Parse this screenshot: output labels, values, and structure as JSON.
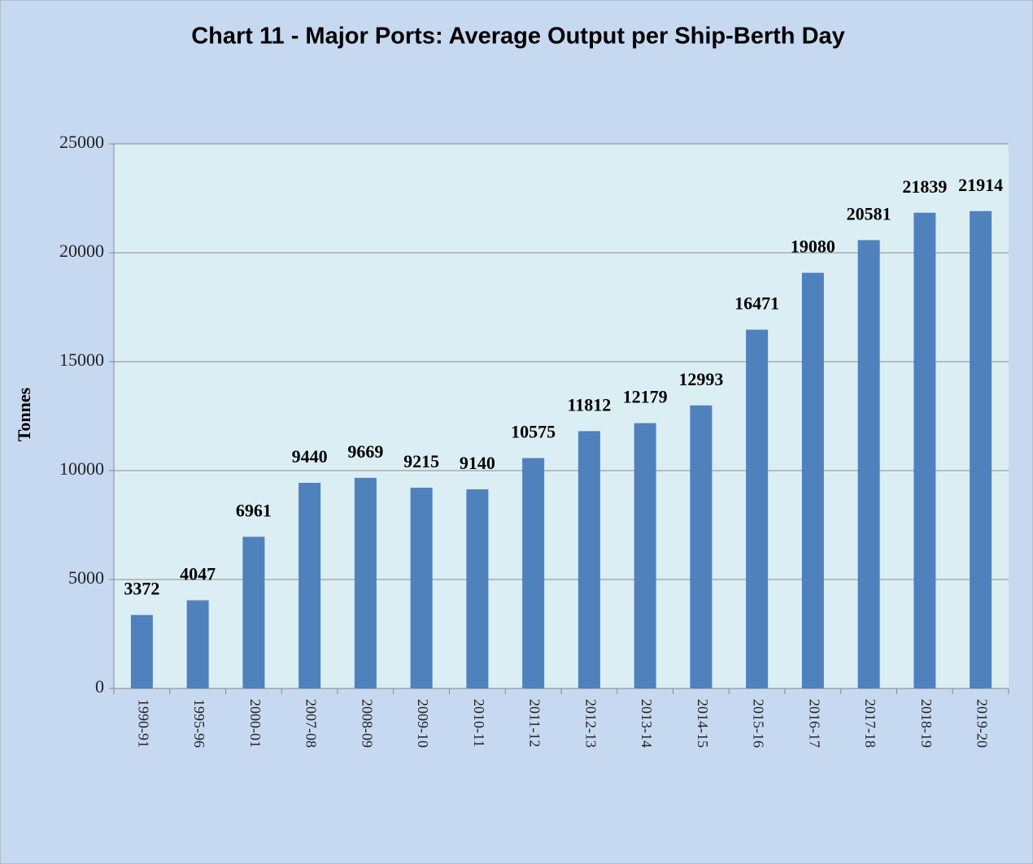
{
  "chart_data": {
    "type": "bar",
    "title": "Chart 11 - Major Ports: Average Output per Ship-Berth Day",
    "y_label": "Tonnes",
    "categories": [
      "1990-91",
      "1995-96",
      "2000-01",
      "2007-08",
      "2008-09",
      "2009-10",
      "2010-11",
      "2011-12",
      "2012-13",
      "2013-14",
      "2014-15",
      "2015-16",
      "2016-17",
      "2017-18",
      "2018-19",
      "2019-20"
    ],
    "values": [
      3372,
      4047,
      6961,
      9440,
      9669,
      9215,
      9140,
      10575,
      11812,
      12179,
      12993,
      16471,
      19080,
      20581,
      21839,
      21914
    ],
    "color": "#4f81bd",
    "ylim": [
      0,
      25000
    ],
    "yticks": [
      0,
      5000,
      10000,
      15000,
      20000,
      25000
    ],
    "grid": true
  }
}
